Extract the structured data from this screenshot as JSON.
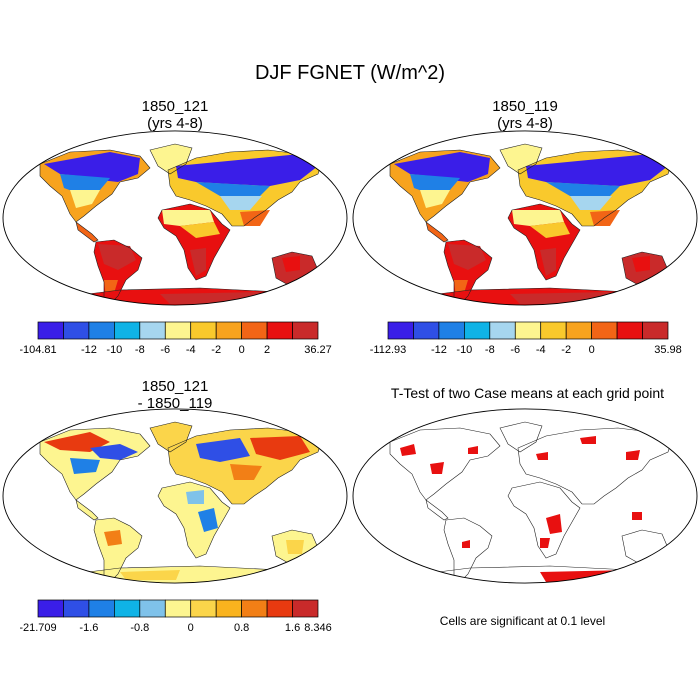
{
  "title": "DJF FGNET (W/m^2)",
  "panels": [
    {
      "id": "p1",
      "title_line1": "1850_121",
      "title_line2": "(yrs 4-8)"
    },
    {
      "id": "p2",
      "title_line1": "1850_119",
      "title_line2": "(yrs 4-8)"
    },
    {
      "id": "p3",
      "title_line1": "1850_121",
      "title_line2": "- 1850_119"
    },
    {
      "id": "p4",
      "title_line1": "T-Test of two Case means at each grid point",
      "title_line2": ""
    }
  ],
  "colorbars": [
    {
      "colors": [
        "#3a1ee8",
        "#2f4fe6",
        "#1f80e6",
        "#0fb3e6",
        "#a6d6ef",
        "#fdf590",
        "#f9c92c",
        "#f7a31e",
        "#f26516",
        "#e81010",
        "#c92a2a"
      ],
      "labels": [
        "-104.81",
        "-12",
        "-10",
        "-8",
        "-6",
        "-4",
        "-2",
        "0",
        "2",
        "36.27"
      ],
      "label_boundaries": [
        0,
        2,
        3,
        4,
        5,
        6,
        7,
        8,
        9,
        11
      ]
    },
    {
      "colors": [
        "#3a1ee8",
        "#2f4fe6",
        "#1f80e6",
        "#0fb3e6",
        "#a6d6ef",
        "#fdf590",
        "#f9c92c",
        "#f7a31e",
        "#f26516",
        "#e81010",
        "#c92a2a"
      ],
      "labels": [
        "-112.93",
        "-12",
        "-10",
        "-8",
        "-6",
        "-4",
        "-2",
        "0",
        "35.98"
      ],
      "label_boundaries": [
        0,
        2,
        3,
        4,
        5,
        6,
        7,
        8,
        11
      ]
    },
    {
      "colors": [
        "#3a1ee8",
        "#2f4fe6",
        "#1f80e6",
        "#0fb3e6",
        "#7fc2ea",
        "#fdf590",
        "#fbd54a",
        "#f9b31e",
        "#f27f16",
        "#e83a10",
        "#c92a2a"
      ],
      "labels": [
        "-21.709",
        "-1.6",
        "-0.8",
        "0",
        "0.8",
        "1.6",
        "8.346"
      ],
      "label_boundaries": [
        0,
        2,
        4,
        6,
        8,
        10,
        11
      ]
    }
  ],
  "note": "Cells are significant at 0.1 level"
}
